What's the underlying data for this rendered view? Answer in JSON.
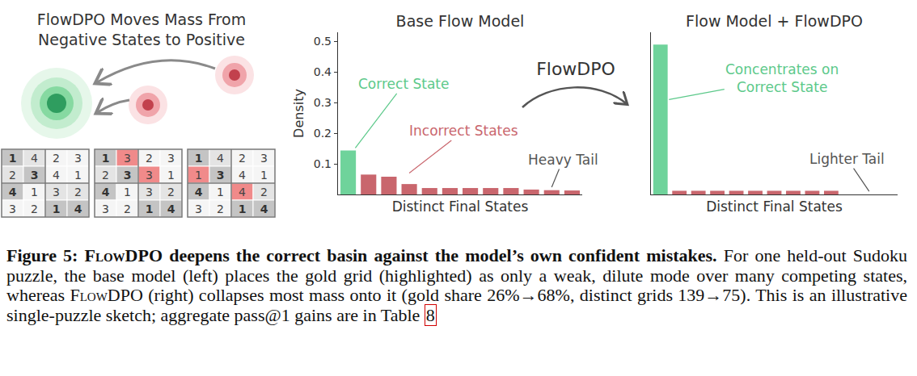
{
  "left_panel": {
    "title": [
      "FlowDPO Moves Mass From",
      "Negative States to Positive"
    ],
    "givens": [
      [
        0,
        0
      ],
      [
        1,
        1
      ],
      [
        2,
        0
      ],
      [
        3,
        2
      ],
      [
        3,
        3
      ]
    ],
    "grids": [
      {
        "rows": [
          [
            1,
            4,
            2,
            3
          ],
          [
            2,
            3,
            4,
            1
          ],
          [
            4,
            1,
            3,
            2
          ],
          [
            3,
            2,
            1,
            4
          ]
        ],
        "errors": []
      },
      {
        "rows": [
          [
            1,
            3,
            2,
            3
          ],
          [
            2,
            3,
            3,
            1
          ],
          [
            4,
            1,
            3,
            2
          ],
          [
            3,
            2,
            1,
            4
          ]
        ],
        "errors": [
          [
            0,
            1
          ],
          [
            1,
            2
          ]
        ]
      },
      {
        "rows": [
          [
            1,
            4,
            2,
            3
          ],
          [
            1,
            3,
            4,
            1
          ],
          [
            4,
            1,
            4,
            2
          ],
          [
            3,
            2,
            1,
            4
          ]
        ],
        "errors": [
          [
            1,
            0
          ],
          [
            2,
            2
          ]
        ]
      }
    ]
  },
  "arrow_label": "FlowDPO",
  "chart_data": [
    {
      "type": "bar",
      "title": "Base Flow Model",
      "x_label": "Distinct Final States",
      "y_label": "Density",
      "categories": [
        null,
        null,
        null,
        null,
        null,
        null,
        null,
        null,
        null,
        null,
        null,
        null
      ],
      "values": [
        0.144,
        0.065,
        0.058,
        0.034,
        0.021,
        0.021,
        0.021,
        0.021,
        0.021,
        0.016,
        0.014,
        0.013
      ],
      "colors": [
        "#6fd39b",
        "#c9666d",
        "#c9666d",
        "#c9666d",
        "#c9666d",
        "#c9666d",
        "#c9666d",
        "#c9666d",
        "#c9666d",
        "#c9666d",
        "#c9666d",
        "#c9666d"
      ],
      "xlim": [
        -0.5,
        11.5
      ],
      "ylim": [
        0,
        0.53
      ],
      "yticks": [
        0.1,
        0.2,
        0.3,
        0.4,
        0.5
      ],
      "tick_labels": "y",
      "grid": false,
      "annotations": [
        {
          "text": [
            "Correct State"
          ],
          "color": "#5cc98a"
        },
        {
          "text": [
            "Incorrect States"
          ],
          "color": "#c9666d"
        },
        {
          "text": [
            "Heavy Tail"
          ],
          "color": "#555555"
        }
      ]
    },
    {
      "type": "bar",
      "title": "Flow Model + FlowDPO",
      "x_label": "Distinct Final States",
      "categories": [
        null,
        null,
        null,
        null,
        null,
        null,
        null,
        null,
        null,
        null
      ],
      "values": [
        0.49,
        0.012,
        0.012,
        0.012,
        0.012,
        0.012,
        0.012,
        0.012,
        0.012,
        0.012
      ],
      "colors": [
        "#6fd39b",
        "#c9666d",
        "#c9666d",
        "#c9666d",
        "#c9666d",
        "#c9666d",
        "#c9666d",
        "#c9666d",
        "#c9666d",
        "#c9666d"
      ],
      "xlim": [
        -0.5,
        12.5
      ],
      "ylim": [
        0,
        0.53
      ],
      "tick_labels": false,
      "grid": false,
      "annotations": [
        {
          "text": [
            "Concentrates on",
            "Correct State"
          ],
          "color": "#5cc98a"
        },
        {
          "text": [
            "Lighter Tail"
          ],
          "color": "#555555"
        }
      ]
    }
  ],
  "caption": {
    "title_parts": [
      {
        "text": "Figure 5: ",
        "style": "plain"
      },
      {
        "text": "FlowDPO",
        "style": "smallcaps"
      },
      {
        "text": " deepens the correct basin against the model’s own confident mistakes.",
        "style": "plain"
      }
    ],
    "body_parts": [
      {
        "text": " For one held-out Sudoku puzzle, the base model (left) places the gold grid (highlighted) as only a weak, dilute mode over many competing states, whereas ",
        "style": "plain"
      },
      {
        "text": "FlowDPO",
        "style": "smallcaps"
      },
      {
        "text": " (right) collapses most mass onto it (gold share 26%→68%, distinct grids 139→75). This is an illustrative single-puzzle sketch; aggregate pass@1 gains are in Table ",
        "style": "plain"
      },
      {
        "text": "8",
        "style": "ref"
      }
    ]
  }
}
